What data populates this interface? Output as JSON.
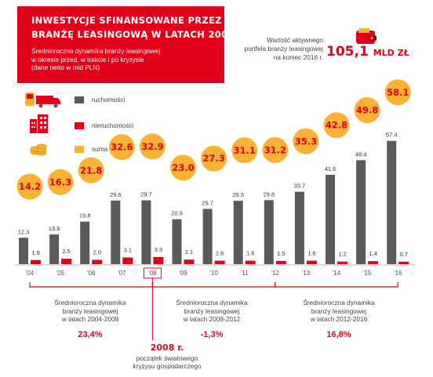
{
  "header": {
    "title_line1": "Inwestycje sfinansowane przez polską",
    "title_line2": "branżę leasingową w latach 2004-2016",
    "subtitle_line1": "Średnioroczna dynamika branży leasingowej",
    "subtitle_line2": "w okresie przed, w trakcie i po kryzysie",
    "subtitle_line3": "(dane netto w mld PLN)"
  },
  "portfolio": {
    "label_line1": "Wartość aktywnego",
    "label_line2": "portfela branży leasingowej",
    "label_line3": "na koniec 2016 r.",
    "value": "105,1",
    "unit": "MLD ZŁ"
  },
  "legend": {
    "ruchomosci": "ruchomości",
    "nieruchomosci": "nieruchomości",
    "suma": "suma"
  },
  "colors": {
    "grey": "#5a5a5a",
    "red": "#e2001a",
    "orange": "#f9b233"
  },
  "icons": [
    "vehicles-icon",
    "buildings-icon",
    "coins-icon",
    "wallet-icon"
  ],
  "chart_data": {
    "type": "bar",
    "categories": [
      "'04",
      "'05",
      "'06",
      "'07",
      "'08",
      "'09",
      "'10",
      "'11",
      "'12",
      "'13",
      "'14",
      "'15",
      "'16"
    ],
    "series": [
      {
        "name": "ruchomości",
        "values": [
          12.3,
          13.8,
          19.8,
          29.6,
          29.7,
          20.9,
          25.7,
          29.5,
          29.8,
          33.7,
          41.6,
          48.4,
          57.4
        ],
        "labels": [
          "12.3",
          "13.8",
          "19.8",
          "29.6",
          "29.7",
          "20.9",
          "25.7",
          "29.5",
          "29.8",
          "33.7",
          "41.6",
          "48.4",
          "57.4"
        ]
      },
      {
        "name": "nieruchomości",
        "values": [
          1.9,
          2.5,
          2.0,
          3.1,
          3.3,
          2.1,
          1.6,
          1.6,
          1.5,
          1.6,
          1.2,
          1.4,
          0.7
        ],
        "labels": [
          "1.9",
          "2.5",
          "2.0",
          "3.1",
          "3.3",
          "2.1",
          "1.6",
          "1.6",
          "1.5",
          "1.6",
          "1.2",
          "1.4",
          "0.7"
        ]
      },
      {
        "name": "suma",
        "values": [
          14.2,
          16.3,
          21.8,
          32.6,
          32.9,
          23.0,
          27.3,
          31.1,
          31.2,
          35.3,
          42.8,
          49.8,
          58.1
        ],
        "labels": [
          "14.2",
          "16.3",
          "21.8",
          "32.6",
          "32.9",
          "23.0",
          "27.3",
          "31.1",
          "31.2",
          "35.3",
          "42.8",
          "49.8",
          "58.1"
        ]
      }
    ],
    "periods": [
      {
        "line1": "Średnioroczna dynamika",
        "line2": "branży leasingowej",
        "line3": "w latach 2004-2008",
        "value": "23,4%"
      },
      {
        "line1": "Średnioroczna dynamika",
        "line2": "branży leasingowej",
        "line3": "w latach 2008-2012",
        "value": "-1,3%"
      },
      {
        "line1": "Średnioroczna dynamika",
        "line2": "branży leasingowej",
        "line3": "w latach 2012-2016",
        "value": "16,8%"
      }
    ],
    "crisis": {
      "title": "2008 r.",
      "line1": "początek światowego",
      "line2": "kryzysu gospodarczego"
    }
  }
}
